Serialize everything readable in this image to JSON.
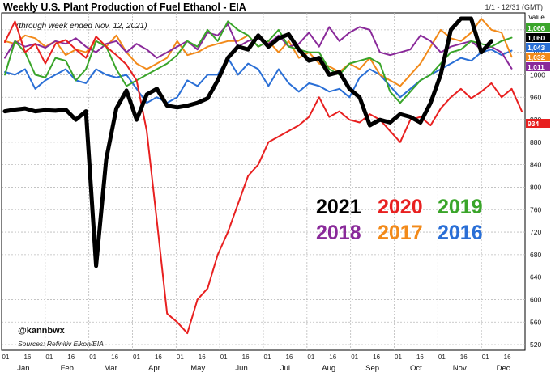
{
  "header": {
    "title": "Weekly U.S. Plant Production of Fuel Ethanol - EIA",
    "range": "1/1 - 12/31 (GMT)",
    "unit_line1": "Value",
    "unit_line2": "KB/D"
  },
  "chart_data": {
    "type": "line",
    "subtitle": "(through week ended Nov. 12, 2021)",
    "ylim": [
      510,
      1110
    ],
    "y_ticks": [
      520,
      560,
      600,
      640,
      680,
      720,
      760,
      800,
      840,
      880,
      920,
      960,
      1000,
      1040,
      1080
    ],
    "x_month_labels": [
      "Jan",
      "Feb",
      "Mar",
      "Apr",
      "May",
      "Jun",
      "Jul",
      "Aug",
      "Sep",
      "Oct",
      "Nov",
      "Dec"
    ],
    "x_day_labels": [
      "01",
      "16"
    ],
    "grid": true,
    "legend": [
      [
        "2021",
        "2020",
        "2019"
      ],
      [
        "2018",
        "2017",
        "2016"
      ]
    ],
    "credit": "@kannbwx",
    "source": "Sources: Refinitiv Eikon/EIA",
    "last_value_tags": [
      {
        "label": "1,066",
        "color": "#3aa52a"
      },
      {
        "label": "1,060",
        "color": "#000000"
      },
      {
        "label": "1,043",
        "color": "#2a6fd6"
      },
      {
        "label": "1,032",
        "color": "#f28a1a"
      },
      {
        "label": "1,011",
        "color": "#8a2a9a"
      },
      {
        "label": "934",
        "color": "#e82020"
      }
    ],
    "series": [
      {
        "name": "2021",
        "color": "#000000",
        "width": 5,
        "values": [
          935,
          938,
          940,
          935,
          937,
          936,
          938,
          920,
          935,
          660,
          850,
          940,
          972,
          920,
          965,
          975,
          945,
          942,
          945,
          950,
          958,
          990,
          1030,
          1050,
          1045,
          1070,
          1050,
          1065,
          1072,
          1045,
          1025,
          1030,
          1000,
          1005,
          975,
          960,
          910,
          920,
          915,
          930,
          925,
          915,
          950,
          1000,
          1080,
          1100,
          1100,
          1040,
          1060
        ]
      },
      {
        "name": "2020",
        "color": "#e82020",
        "width": 2,
        "values": [
          1058,
          1095,
          1040,
          1055,
          1020,
          1055,
          1062,
          1045,
          1030,
          1068,
          1050,
          1035,
          1018,
          990,
          900,
          740,
          575,
          560,
          540,
          600,
          620,
          680,
          720,
          770,
          820,
          840,
          880,
          890,
          900,
          910,
          925,
          960,
          925,
          935,
          920,
          915,
          930,
          920,
          900,
          880,
          920,
          925,
          910,
          940,
          960,
          975,
          958,
          970,
          985,
          960,
          975,
          935
        ]
      },
      {
        "name": "2019",
        "color": "#3aa52a",
        "width": 2,
        "values": [
          1000,
          1060,
          1040,
          1000,
          995,
          1030,
          1025,
          990,
          1010,
          1060,
          1050,
          1010,
          980,
          990,
          1000,
          1010,
          1020,
          1035,
          1060,
          1050,
          1080,
          1060,
          1095,
          1080,
          1070,
          1050,
          1060,
          1080,
          1050,
          1045,
          1040,
          1040,
          1010,
          1000,
          1020,
          1025,
          1030,
          1020,
          970,
          950,
          970,
          990,
          1000,
          1020,
          1040,
          1045,
          1060,
          1055,
          1050,
          1060,
          1066
        ]
      },
      {
        "name": "2018",
        "color": "#8a2a9a",
        "width": 2,
        "values": [
          1030,
          1060,
          1050,
          1055,
          1048,
          1060,
          1055,
          1065,
          1050,
          1040,
          1055,
          1060,
          1040,
          1055,
          1045,
          1030,
          1040,
          1050,
          1060,
          1045,
          1075,
          1070,
          1090,
          1050,
          1060,
          1065,
          1055,
          1070,
          1050,
          1055,
          1075,
          1050,
          1085,
          1060,
          1075,
          1085,
          1080,
          1040,
          1035,
          1040,
          1045,
          1070,
          1060,
          1040,
          1050,
          1055,
          1060,
          1045,
          1050,
          1040,
          1011
        ]
      },
      {
        "name": "2017",
        "color": "#f28a1a",
        "width": 2,
        "values": [
          1060,
          1055,
          1070,
          1065,
          1050,
          1060,
          1035,
          1045,
          1040,
          1060,
          1050,
          1070,
          1040,
          1020,
          1010,
          1020,
          1030,
          1060,
          1035,
          1040,
          1050,
          1055,
          1060,
          1060,
          1070,
          1050,
          1060,
          1040,
          1060,
          1030,
          1040,
          1020,
          1015,
          1005,
          1020,
          1010,
          1030,
          1000,
          990,
          980,
          1000,
          1020,
          1050,
          1080,
          1065,
          1060,
          1075,
          1100,
          1080,
          1075,
          1032
        ]
      },
      {
        "name": "2016",
        "color": "#2a6fd6",
        "width": 2,
        "values": [
          1005,
          1000,
          1010,
          975,
          990,
          1000,
          1010,
          990,
          985,
          1010,
          1000,
          995,
          1000,
          975,
          950,
          960,
          950,
          960,
          990,
          980,
          1000,
          1000,
          1030,
          1000,
          1020,
          1010,
          980,
          1010,
          985,
          970,
          985,
          980,
          970,
          975,
          960,
          995,
          1010,
          1000,
          980,
          960,
          975,
          990,
          1000,
          1010,
          1020,
          1030,
          1025,
          1040,
          1045,
          1035,
          1043
        ]
      }
    ]
  }
}
